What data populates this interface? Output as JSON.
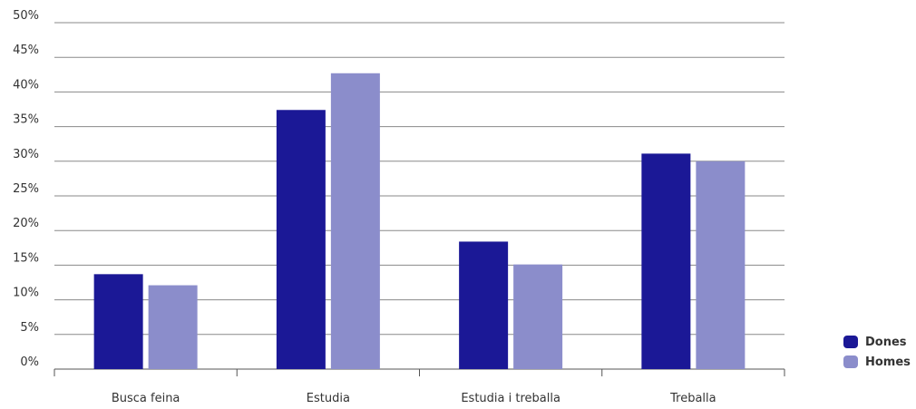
{
  "chart_data": {
    "type": "bar",
    "title": "",
    "xlabel": "",
    "ylabel": "",
    "categories": [
      "Busca feina",
      "Estudia",
      "Estudia i treballa",
      "Treballa"
    ],
    "series": [
      {
        "name": "Dones",
        "color": "#1b1896",
        "values": [
          13.7,
          37.4,
          18.4,
          31.1
        ]
      },
      {
        "name": "Homes",
        "color": "#8b8dcb",
        "values": [
          12.1,
          42.7,
          15.1,
          30.0
        ]
      }
    ],
    "yticks": [
      "0%",
      "5%",
      "10%",
      "15%",
      "20%",
      "25%",
      "30%",
      "35%",
      "40%",
      "45%",
      "50%"
    ],
    "ylim": [
      0,
      50
    ],
    "grid": true,
    "legend_position": "bottom-right"
  }
}
